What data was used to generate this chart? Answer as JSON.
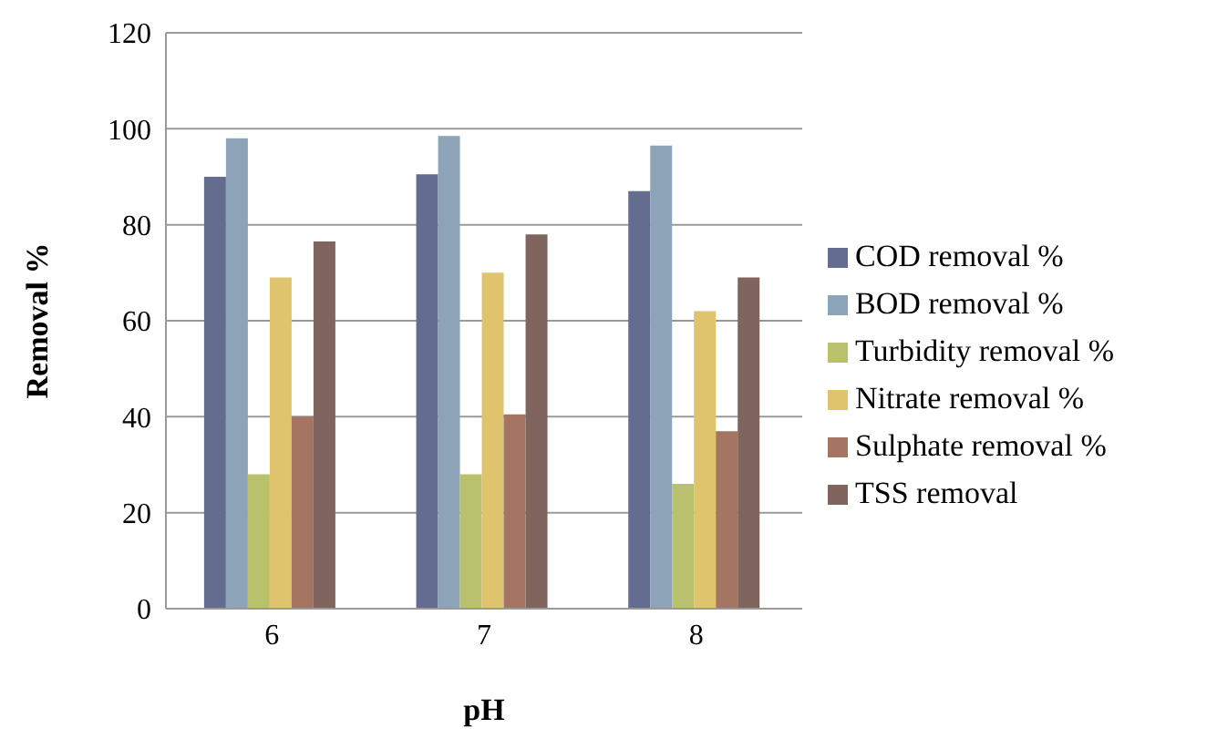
{
  "chart_data": {
    "type": "bar",
    "xlabel": "pH",
    "ylabel": "Removal %",
    "categories": [
      "6",
      "7",
      "8"
    ],
    "series": [
      {
        "name": "COD removal %",
        "color": "#646d8f",
        "values": [
          90,
          90.5,
          87
        ]
      },
      {
        "name": "BOD removal %",
        "color": "#8ca3b8",
        "values": [
          98,
          98.5,
          96.5
        ]
      },
      {
        "name": "Turbidity removal %",
        "color": "#bac16c",
        "values": [
          28,
          28,
          26
        ]
      },
      {
        "name": "Nitrate removal %",
        "color": "#dfc36d",
        "values": [
          69,
          70,
          62
        ]
      },
      {
        "name": "Sulphate removal %",
        "color": "#a47563",
        "values": [
          40,
          40.5,
          37
        ]
      },
      {
        "name": "TSS removal",
        "color": "#7f655d",
        "values": [
          76.5,
          78,
          69
        ]
      }
    ],
    "ylim": [
      0,
      120
    ],
    "yticks": [
      0,
      20,
      40,
      60,
      80,
      100,
      120
    ],
    "grid": "y",
    "legend": "right"
  }
}
